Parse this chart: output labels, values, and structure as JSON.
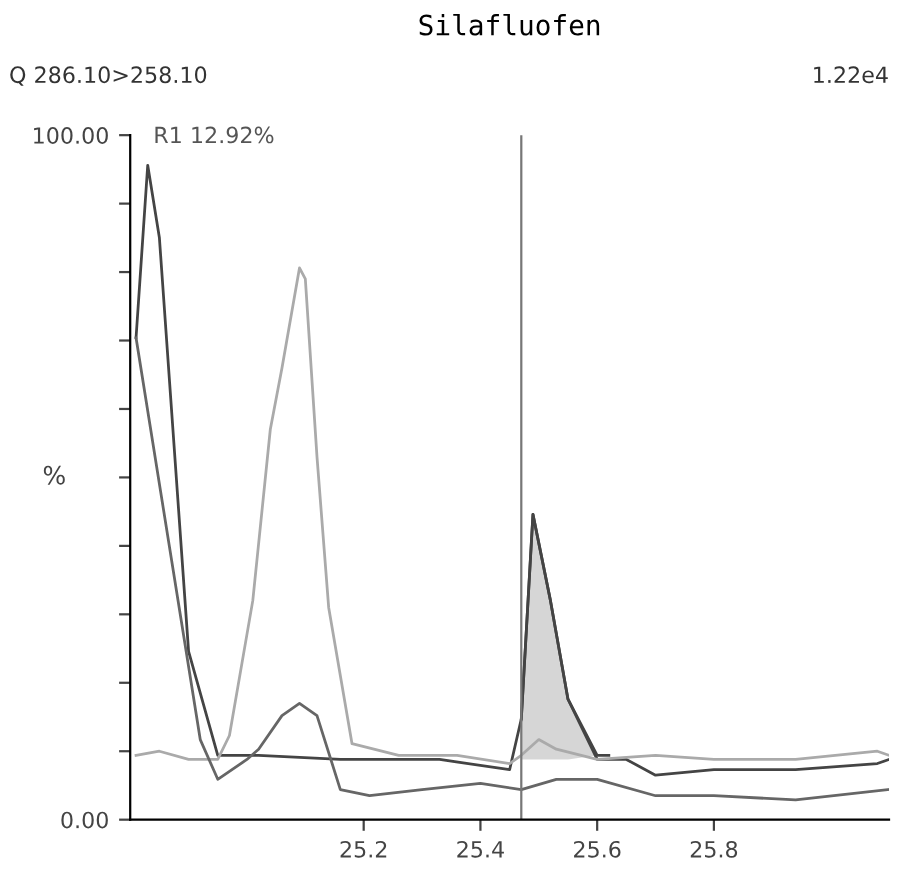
{
  "chart_data": {
    "type": "line",
    "title": "Silafluofen",
    "ylabel": "%",
    "annotations": [
      "Q 286.10>258.10",
      "1.22e4",
      {
        "text": "R1 12.92%",
        "x": 24.83,
        "y": 95.6
      }
    ],
    "xlim": [
      24.8,
      26.1
    ],
    "ylim": [
      0,
      100
    ],
    "xticks": [
      25.2,
      25.4,
      25.6,
      25.8
    ],
    "yticks": [
      {
        "value": 0,
        "label": "0.00"
      },
      {
        "value": 10,
        "label": null
      },
      {
        "value": 20,
        "label": null
      },
      {
        "value": 30,
        "label": null
      },
      {
        "value": 40,
        "label": null
      },
      {
        "value": 50,
        "label": null
      },
      {
        "value": 60,
        "label": null
      },
      {
        "value": 70,
        "label": null
      },
      {
        "value": 80,
        "label": null
      },
      {
        "value": 90,
        "label": null
      },
      {
        "value": 100,
        "label": "100.00"
      }
    ],
    "grid": false,
    "legend": false,
    "marker": "none",
    "line_style": "solid",
    "ref_lines": [
      {
        "axis": "x",
        "value": 25.47,
        "color": "#777777"
      }
    ],
    "series": [
      {
        "color": "#444444",
        "x": [
          24.81,
          24.83,
          24.85,
          24.9,
          24.95,
          25.02,
          25.16,
          25.33,
          25.45,
          25.47,
          25.49,
          25.52,
          25.55,
          25.6,
          25.65,
          25.7,
          25.8,
          25.94,
          26.08,
          26.1
        ],
        "values": [
          70.4,
          95.6,
          85,
          24.6,
          9.4,
          9.4,
          8.8,
          8.8,
          7.3,
          14.7,
          44.6,
          32,
          17.6,
          8.8,
          8.8,
          6.5,
          7.3,
          7.3,
          8.2,
          8.8
        ]
      },
      {
        "color": "#aaaaaa",
        "x": [
          24.81,
          24.85,
          24.9,
          24.95,
          24.97,
          25.01,
          25.04,
          25.06,
          25.09,
          25.1,
          25.12,
          25.14,
          25.18,
          25.26,
          25.36,
          25.45,
          25.47,
          25.5,
          25.53,
          25.6,
          25.7,
          25.8,
          25.94,
          26.08,
          26.1
        ],
        "values": [
          9.4,
          10,
          8.8,
          8.8,
          12.3,
          32,
          57,
          66,
          80.6,
          79,
          53,
          31,
          11.1,
          9.4,
          9.4,
          8.2,
          9.4,
          11.7,
          10.3,
          8.8,
          9.4,
          8.8,
          8.8,
          10,
          9.4
        ]
      },
      {
        "color": "#666666",
        "x": [
          24.81,
          24.92,
          24.95,
          25.0,
          25.02,
          25.06,
          25.09,
          25.12,
          25.16,
          25.21,
          25.3,
          25.4,
          25.47,
          25.53,
          25.6,
          25.7,
          25.8,
          25.94,
          26.1
        ],
        "values": [
          70.4,
          11.7,
          5.9,
          8.8,
          10.3,
          15.2,
          17,
          15.2,
          4.4,
          3.5,
          4.4,
          5.3,
          4.4,
          5.9,
          5.9,
          3.5,
          3.5,
          2.9,
          4.4
        ]
      },
      {
        "color": "#444444",
        "x": [
          25.47,
          25.49,
          25.52,
          25.55,
          25.6,
          25.62
        ],
        "values": [
          14.7,
          44.6,
          32,
          17.6,
          9.4,
          9.4
        ],
        "lower": [
          8.8,
          8.8,
          8.8,
          8.8,
          9.4,
          9.4
        ],
        "upper": [
          14.7,
          44.6,
          32,
          17.6,
          9.4,
          9.4
        ]
      }
    ]
  }
}
